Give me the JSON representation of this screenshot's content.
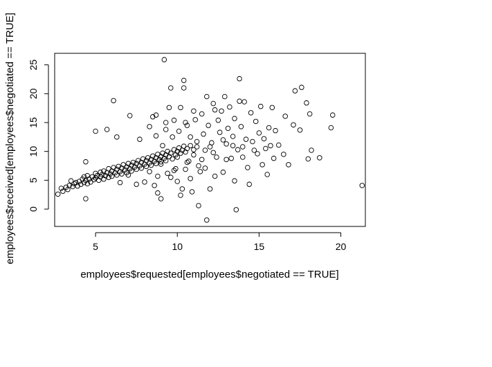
{
  "chart_data": {
    "type": "scatter",
    "title": "",
    "xlabel": "employees$requested[employees$negotiated == TRUE]",
    "ylabel": "employees$received[employees$negotiated == TRUE]",
    "xlim": [
      2.5,
      21.5
    ],
    "ylim": [
      -3,
      27
    ],
    "x_ticks": [
      5,
      10,
      15,
      20
    ],
    "y_ticks": [
      0,
      5,
      10,
      15,
      20,
      25
    ],
    "x_tick_labels": [
      "5",
      "10",
      "15",
      "20"
    ],
    "y_tick_labels": [
      "0",
      "5",
      "10",
      "15",
      "20",
      "25"
    ],
    "grid": false,
    "legend": "none",
    "marker": "open-circle",
    "series": [
      {
        "points": [
          [
            2.7,
            2.6
          ],
          [
            2.9,
            3.6
          ],
          [
            3.0,
            3.1
          ],
          [
            3.2,
            3.8
          ],
          [
            3.3,
            3.4
          ],
          [
            3.4,
            4.1
          ],
          [
            3.5,
            4.9
          ],
          [
            3.6,
            3.9
          ],
          [
            3.7,
            4.4
          ],
          [
            3.8,
            4.6
          ],
          [
            3.9,
            4.0
          ],
          [
            4.0,
            4.8
          ],
          [
            4.1,
            4.3
          ],
          [
            4.2,
            5.2
          ],
          [
            4.3,
            4.6
          ],
          [
            4.3,
            5.6
          ],
          [
            4.4,
            5.0
          ],
          [
            4.5,
            4.4
          ],
          [
            4.5,
            5.8
          ],
          [
            4.6,
            5.2
          ],
          [
            4.7,
            4.7
          ],
          [
            4.8,
            5.6
          ],
          [
            4.9,
            5.1
          ],
          [
            5.0,
            6.2
          ],
          [
            5.0,
            5.4
          ],
          [
            5.1,
            5.8
          ],
          [
            5.2,
            5.0
          ],
          [
            5.3,
            6.4
          ],
          [
            5.3,
            5.6
          ],
          [
            5.4,
            6.0
          ],
          [
            5.5,
            5.2
          ],
          [
            5.5,
            6.6
          ],
          [
            5.6,
            5.8
          ],
          [
            5.7,
            6.3
          ],
          [
            5.8,
            5.5
          ],
          [
            5.8,
            7.0
          ],
          [
            5.9,
            6.1
          ],
          [
            6.0,
            6.6
          ],
          [
            6.0,
            5.7
          ],
          [
            6.1,
            7.2
          ],
          [
            6.2,
            6.3
          ],
          [
            6.3,
            6.9
          ],
          [
            6.3,
            5.9
          ],
          [
            6.4,
            7.4
          ],
          [
            6.5,
            6.5
          ],
          [
            6.6,
            7.1
          ],
          [
            6.6,
            6.1
          ],
          [
            6.7,
            7.7
          ],
          [
            6.8,
            6.8
          ],
          [
            6.9,
            7.3
          ],
          [
            6.9,
            6.3
          ],
          [
            7.0,
            7.9
          ],
          [
            7.1,
            7.0
          ],
          [
            7.2,
            7.6
          ],
          [
            7.2,
            6.6
          ],
          [
            7.3,
            8.1
          ],
          [
            7.4,
            7.3
          ],
          [
            7.5,
            7.9
          ],
          [
            7.5,
            6.9
          ],
          [
            7.6,
            8.4
          ],
          [
            7.7,
            7.5
          ],
          [
            7.8,
            8.1
          ],
          [
            7.8,
            7.1
          ],
          [
            7.9,
            8.7
          ],
          [
            8.0,
            7.8
          ],
          [
            8.1,
            8.4
          ],
          [
            8.1,
            7.4
          ],
          [
            8.2,
            8.9
          ],
          [
            8.3,
            8.0
          ],
          [
            8.4,
            8.6
          ],
          [
            8.4,
            7.6
          ],
          [
            8.5,
            9.2
          ],
          [
            8.6,
            8.3
          ],
          [
            8.7,
            8.9
          ],
          [
            8.7,
            7.9
          ],
          [
            8.8,
            9.5
          ],
          [
            8.9,
            8.6
          ],
          [
            9.0,
            9.1
          ],
          [
            9.0,
            8.2
          ],
          [
            9.1,
            9.7
          ],
          [
            9.2,
            8.8
          ],
          [
            9.3,
            9.4
          ],
          [
            9.3,
            8.4
          ],
          [
            9.4,
            10.0
          ],
          [
            9.5,
            9.1
          ],
          [
            9.6,
            9.7
          ],
          [
            9.7,
            8.7
          ],
          [
            9.8,
            10.3
          ],
          [
            9.9,
            9.4
          ],
          [
            10.0,
            10.0
          ],
          [
            10.0,
            9.0
          ],
          [
            10.1,
            10.6
          ],
          [
            10.2,
            9.7
          ],
          [
            10.3,
            10.2
          ],
          [
            10.4,
            10.9
          ],
          [
            10.5,
            9.9
          ],
          [
            10.6,
            10.5
          ],
          [
            10.8,
            11.0
          ],
          [
            11.0,
            10.3
          ],
          [
            11.2,
            10.8
          ],
          [
            4.4,
            8.2
          ],
          [
            5.0,
            13.5
          ],
          [
            5.7,
            13.8
          ],
          [
            6.1,
            18.8
          ],
          [
            6.3,
            12.5
          ],
          [
            6.5,
            4.6
          ],
          [
            7.0,
            5.9
          ],
          [
            7.1,
            16.2
          ],
          [
            7.5,
            4.3
          ],
          [
            8.0,
            4.7
          ],
          [
            4.4,
            1.8
          ],
          [
            8.3,
            14.3
          ],
          [
            8.5,
            16.0
          ],
          [
            8.6,
            4.1
          ],
          [
            8.7,
            16.3
          ],
          [
            8.8,
            5.7
          ],
          [
            8.8,
            2.8
          ],
          [
            9.0,
            1.8
          ],
          [
            9.1,
            11.0
          ],
          [
            9.2,
            25.9
          ],
          [
            9.3,
            15.0
          ],
          [
            9.4,
            6.2
          ],
          [
            9.5,
            17.6
          ],
          [
            9.6,
            21.0
          ],
          [
            9.7,
            12.5
          ],
          [
            9.8,
            15.4
          ],
          [
            9.9,
            7.0
          ],
          [
            10.0,
            4.8
          ],
          [
            10.1,
            13.5
          ],
          [
            10.2,
            17.6
          ],
          [
            10.2,
            2.4
          ],
          [
            10.3,
            3.5
          ],
          [
            10.4,
            22.3
          ],
          [
            10.4,
            21.0
          ],
          [
            10.5,
            15.0
          ],
          [
            10.6,
            14.5
          ],
          [
            10.7,
            8.3
          ],
          [
            10.8,
            12.5
          ],
          [
            10.9,
            3.0
          ],
          [
            11.0,
            17.0
          ],
          [
            11.1,
            15.5
          ],
          [
            11.2,
            11.7
          ],
          [
            11.3,
            7.5
          ],
          [
            11.3,
            0.6
          ],
          [
            11.4,
            6.5
          ],
          [
            11.5,
            16.5
          ],
          [
            11.6,
            13.0
          ],
          [
            11.7,
            10.2
          ],
          [
            11.8,
            19.5
          ],
          [
            11.8,
            -1.9
          ],
          [
            11.9,
            14.5
          ],
          [
            12.0,
            3.5
          ],
          [
            12.1,
            11.5
          ],
          [
            12.2,
            18.3
          ],
          [
            12.3,
            17.2
          ],
          [
            12.4,
            9.0
          ],
          [
            12.5,
            15.4
          ],
          [
            12.6,
            13.3
          ],
          [
            12.7,
            17.0
          ],
          [
            12.8,
            6.4
          ],
          [
            12.9,
            19.5
          ],
          [
            13.0,
            11.3
          ],
          [
            13.1,
            14.0
          ],
          [
            13.2,
            17.7
          ],
          [
            13.3,
            8.8
          ],
          [
            13.4,
            12.6
          ],
          [
            13.5,
            15.7
          ],
          [
            13.5,
            4.9
          ],
          [
            13.6,
            -0.1
          ],
          [
            13.7,
            10.3
          ],
          [
            13.8,
            18.7
          ],
          [
            13.8,
            22.6
          ],
          [
            13.9,
            14.3
          ],
          [
            14.0,
            9.0
          ],
          [
            14.1,
            18.6
          ],
          [
            14.2,
            12.1
          ],
          [
            14.3,
            7.2
          ],
          [
            14.4,
            4.3
          ],
          [
            14.5,
            16.7
          ],
          [
            14.6,
            11.7
          ],
          [
            14.7,
            10.2
          ],
          [
            14.8,
            15.2
          ],
          [
            14.9,
            9.6
          ],
          [
            15.0,
            13.2
          ],
          [
            15.1,
            17.8
          ],
          [
            15.2,
            7.7
          ],
          [
            15.3,
            12.2
          ],
          [
            15.4,
            10.5
          ],
          [
            15.5,
            6.0
          ],
          [
            15.6,
            14.1
          ],
          [
            15.7,
            11.0
          ],
          [
            15.8,
            17.6
          ],
          [
            15.9,
            8.8
          ],
          [
            16.0,
            13.6
          ],
          [
            16.2,
            11.1
          ],
          [
            16.6,
            16.1
          ],
          [
            16.8,
            7.7
          ],
          [
            17.1,
            14.6
          ],
          [
            17.2,
            20.5
          ],
          [
            17.5,
            13.7
          ],
          [
            17.6,
            21.1
          ],
          [
            17.9,
            18.4
          ],
          [
            18.0,
            8.7
          ],
          [
            18.1,
            16.5
          ],
          [
            18.2,
            10.2
          ],
          [
            18.7,
            8.9
          ],
          [
            19.4,
            14.1
          ],
          [
            19.5,
            16.3
          ],
          [
            21.3,
            4.1
          ],
          [
            16.5,
            9.5
          ],
          [
            12.0,
            10.8
          ],
          [
            12.8,
            12.0
          ],
          [
            13.4,
            11.0
          ],
          [
            11.5,
            8.6
          ],
          [
            9.0,
            7.8
          ],
          [
            10.6,
            8.1
          ],
          [
            11.0,
            9.4
          ],
          [
            12.2,
            9.8
          ],
          [
            13.0,
            8.6
          ],
          [
            14.0,
            10.8
          ],
          [
            9.8,
            6.7
          ],
          [
            10.5,
            6.9
          ],
          [
            11.7,
            7.1
          ],
          [
            8.3,
            6.5
          ],
          [
            9.6,
            5.5
          ],
          [
            12.3,
            5.7
          ],
          [
            10.8,
            5.3
          ],
          [
            7.7,
            12.1
          ],
          [
            8.7,
            12.7
          ],
          [
            9.3,
            13.8
          ]
        ]
      }
    ]
  }
}
